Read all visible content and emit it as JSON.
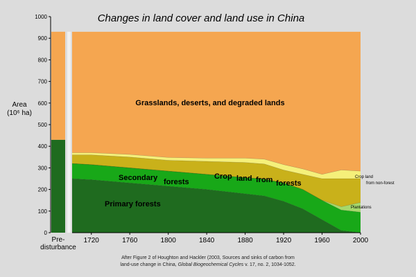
{
  "chart_data": {
    "type": "area",
    "title": "Changes in land cover and land use in China",
    "ylabel": "Area",
    "ylabel_unit": "(10⁶ ha)",
    "ylim": [
      0,
      1000
    ],
    "y_ticks": [
      "0",
      "100",
      "200",
      "300",
      "400",
      "500",
      "600",
      "700",
      "800",
      "900",
      "1000"
    ],
    "x_ticks": [
      "1720",
      "1760",
      "1800",
      "1840",
      "1880",
      "1920",
      "1960",
      "2000"
    ],
    "xlim": [
      1700,
      2000
    ],
    "x": [
      1700,
      1720,
      1760,
      1800,
      1840,
      1880,
      1900,
      1920,
      1940,
      1960,
      1980,
      2000
    ],
    "pre_disturbance": {
      "label": "Pre-\ndisturbance",
      "values": [
        {
          "name": "Forests",
          "value": 430
        },
        {
          "name": "Grasslands, deserts, and degraded lands",
          "value": 500
        }
      ],
      "total": 930
    },
    "series": [
      {
        "name": "Primary forests",
        "color": "#1f6b1f",
        "values": [
          250,
          245,
          230,
          215,
          200,
          180,
          170,
          145,
          110,
          60,
          10,
          0
        ]
      },
      {
        "name": "Secondary forests",
        "color": "#18a818",
        "values": [
          70,
          70,
          70,
          70,
          70,
          75,
          78,
          85,
          90,
          90,
          95,
          95
        ]
      },
      {
        "name": "Plantations",
        "color": "#a6d86b",
        "values": [
          0,
          0,
          0,
          0,
          0,
          0,
          0,
          0,
          0,
          0,
          15,
          45
        ]
      },
      {
        "name": "Crop land",
        "color": "#c9b11a",
        "values": [
          40,
          45,
          50,
          50,
          60,
          70,
          70,
          60,
          70,
          100,
          130,
          110
        ]
      },
      {
        "name": "Crop land from non-forest",
        "color": "#f5f07a",
        "values": [
          10,
          10,
          12,
          13,
          15,
          20,
          22,
          25,
          25,
          20,
          40,
          35
        ]
      },
      {
        "name": "Grasslands, deserts, and degraded lands",
        "color": "#f5a650",
        "values": [
          560,
          560,
          568,
          582,
          585,
          585,
          590,
          615,
          635,
          660,
          640,
          645
        ]
      }
    ],
    "total": 930,
    "annotations": {
      "grasslands": "Grasslands, deserts, and degraded lands",
      "secondary_1": "Secondary",
      "secondary_2": "forests",
      "crop_1": "Crop",
      "crop_2": "land",
      "crop_3": "from",
      "crop_4": "forests",
      "primary": "Primary forests",
      "crop_nonforest_1": "Crop land",
      "crop_nonforest_2": "from non-forest",
      "plantations": "Plantations"
    },
    "caption": {
      "line1": "After Figure 2 of Houghton and Hackler (2003, Sources and sinks of carbon from",
      "line2a": "land-use change in China, ",
      "line2b": "Global Biogeochemical Cycles",
      "line2c": " v. 17, no. 2, 1034-1052."
    },
    "colors": {
      "background": "#dcdcdc",
      "pre_forest": "#1f6b1f",
      "pre_grass": "#f5a650"
    }
  }
}
